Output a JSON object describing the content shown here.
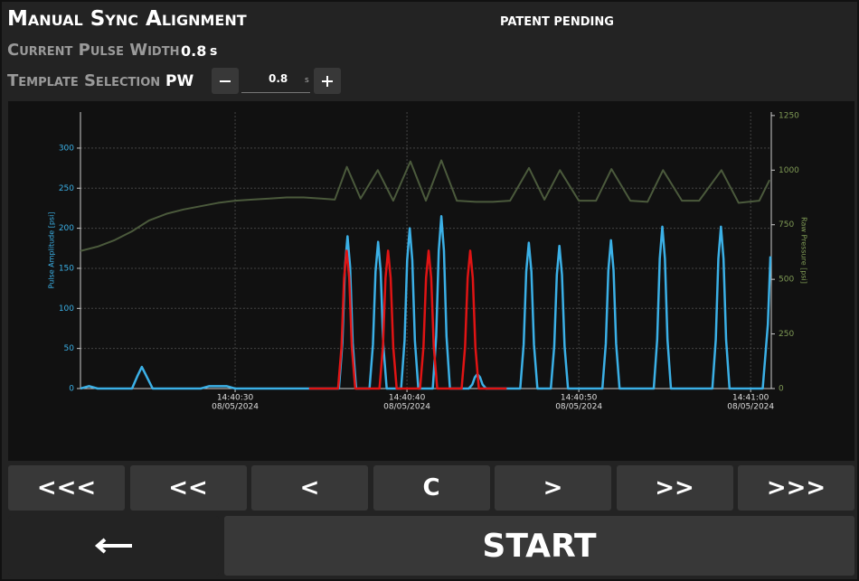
{
  "header": {
    "title": "Manual Sync Alignment",
    "notice": "PATENT PENDING"
  },
  "pulse_width": {
    "label": "Current Pulse Width",
    "value": 0.8,
    "unit": "s"
  },
  "template": {
    "label": "Template Selection",
    "name": "PW",
    "value": 0.8,
    "unit": "s"
  },
  "chart_data": {
    "type": "line",
    "ylabel": "Pulse Amplitude [psi]",
    "y2label": "Raw Pressure [psi]",
    "xlim": [
      21,
      61.2
    ],
    "xticks": [
      {
        "value": 30,
        "label": "14:40:30"
      },
      {
        "value": 40,
        "label": "14:40:40"
      },
      {
        "value": 50,
        "label": "14:40:50"
      },
      {
        "value": 60,
        "label": "14:41:00"
      }
    ],
    "xtick_date": "08/05/2024",
    "ylim": [
      0,
      345
    ],
    "yticks": [
      0,
      50,
      100,
      150,
      200,
      250,
      300
    ],
    "y2lim": [
      0,
      1266
    ],
    "y2ticks": [
      0,
      250,
      500,
      750,
      1000,
      1250
    ],
    "grid": true,
    "series": [
      {
        "color": "#4b5a3c",
        "axis": "y2",
        "x": [
          21,
          22,
          23,
          24,
          25,
          26,
          27,
          28,
          29,
          30,
          31,
          32,
          33,
          34,
          35,
          35.8,
          36.5,
          37.3,
          38.3,
          39.2,
          40.2,
          41.1,
          42.0,
          42.9,
          44,
          45,
          46,
          47.1,
          48,
          48.9,
          50,
          51,
          51.9,
          53,
          54,
          54.9,
          56,
          57,
          58.3,
          59.3,
          60.5,
          61.1
        ],
        "values": [
          630,
          650,
          680,
          720,
          770,
          800,
          820,
          835,
          850,
          860,
          865,
          870,
          875,
          875,
          870,
          865,
          1015,
          870,
          1000,
          860,
          1040,
          860,
          1045,
          860,
          855,
          855,
          860,
          1010,
          865,
          1000,
          860,
          860,
          1005,
          860,
          855,
          1000,
          860,
          860,
          1000,
          850,
          860,
          955
        ]
      },
      {
        "color": "#3bb0e6",
        "x": [
          21,
          21.5,
          22,
          24.0,
          24.3,
          24.57,
          24.85,
          25.2,
          28,
          28.5,
          29.5,
          30,
          36.04,
          36.24,
          36.39,
          36.54,
          36.69,
          36.84,
          37.04,
          37.82,
          38.02,
          38.17,
          38.32,
          38.47,
          38.62,
          38.82,
          39.66,
          39.86,
          40.01,
          40.16,
          40.31,
          40.46,
          40.66,
          41.5,
          41.7,
          41.85,
          42.0,
          42.15,
          42.3,
          42.5,
          43.6,
          43.8,
          43.95,
          44.1,
          44.25,
          44.4,
          44.6,
          46.59,
          46.79,
          46.94,
          47.09,
          47.24,
          47.39,
          47.59,
          48.37,
          48.57,
          48.72,
          48.87,
          49.02,
          49.17,
          49.37,
          51.37,
          51.57,
          51.72,
          51.87,
          52.02,
          52.17,
          52.37,
          54.36,
          54.56,
          54.71,
          54.86,
          55.01,
          55.16,
          55.36,
          57.77,
          57.97,
          58.12,
          58.27,
          58.42,
          58.57,
          58.77,
          60.7,
          61.0,
          61.15
        ],
        "values": [
          0,
          3,
          0,
          0,
          15,
          27,
          15,
          0,
          0,
          3,
          3,
          0,
          0,
          57,
          152,
          190,
          152,
          57,
          0,
          0,
          55,
          146,
          183,
          146,
          55,
          0,
          0,
          60,
          160,
          200,
          160,
          60,
          0,
          0,
          65,
          172,
          215,
          172,
          65,
          0,
          0,
          5,
          14,
          18,
          14,
          5,
          0,
          0,
          55,
          146,
          182,
          146,
          55,
          0,
          0,
          53,
          142,
          178,
          142,
          53,
          0,
          0,
          56,
          148,
          185,
          148,
          56,
          0,
          0,
          61,
          162,
          202,
          162,
          61,
          0,
          0,
          61,
          162,
          202,
          162,
          61,
          0,
          0,
          80,
          165
        ]
      },
      {
        "color": "#e01414",
        "x": [
          34.3,
          35.99,
          36.19,
          36.34,
          36.49,
          36.64,
          36.79,
          36.99,
          38.4,
          38.6,
          38.75,
          38.9,
          39.05,
          39.2,
          39.4,
          40.76,
          40.96,
          41.11,
          41.26,
          41.41,
          41.56,
          41.76,
          43.18,
          43.38,
          43.53,
          43.68,
          43.83,
          43.98,
          44.18,
          45.8
        ],
        "values": [
          0,
          0,
          52,
          138,
          172,
          138,
          52,
          0,
          0,
          52,
          138,
          172,
          138,
          52,
          0,
          0,
          52,
          138,
          172,
          138,
          52,
          0,
          0,
          52,
          138,
          172,
          138,
          52,
          0,
          0
        ]
      }
    ]
  },
  "controls": {
    "buttons": [
      "<<<",
      "<<",
      "<",
      "C",
      ">",
      ">>",
      ">>>"
    ],
    "start": "START"
  }
}
